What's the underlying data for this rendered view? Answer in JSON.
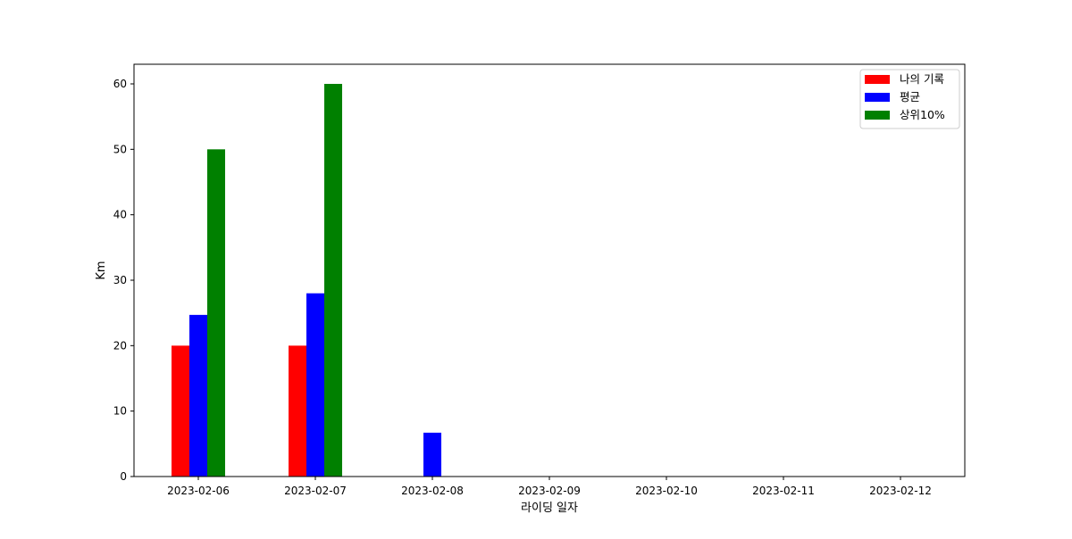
{
  "chart_data": {
    "type": "bar",
    "xlabel": "라이딩 일자",
    "ylabel": "Km",
    "categories": [
      "2023-02-06",
      "2023-02-07",
      "2023-02-08",
      "2023-02-09",
      "2023-02-10",
      "2023-02-11",
      "2023-02-12"
    ],
    "ylim": [
      0,
      63
    ],
    "yticks": [
      0,
      10,
      20,
      30,
      40,
      50,
      60
    ],
    "grid": false,
    "legend_position": "top-right",
    "series": [
      {
        "name": "나의 기록",
        "color": "#ff0000",
        "values": [
          20,
          20,
          0,
          0,
          0,
          0,
          0
        ]
      },
      {
        "name": "평균",
        "color": "#0000ff",
        "values": [
          24.7,
          28,
          6.7,
          0,
          0,
          0,
          0
        ]
      },
      {
        "name": "상위10%",
        "color": "#008000",
        "values": [
          50,
          60,
          0,
          0,
          0,
          0,
          0
        ]
      }
    ]
  }
}
